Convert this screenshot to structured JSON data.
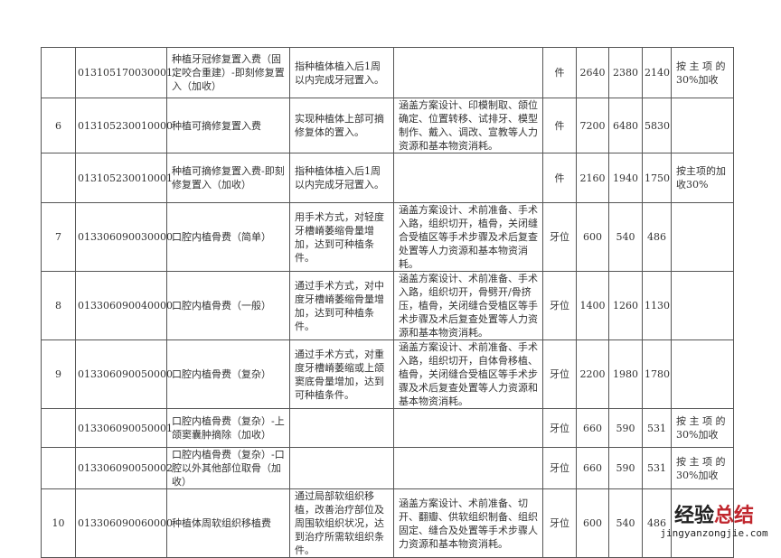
{
  "rows": [
    {
      "no": "",
      "code": "013105170030001",
      "name": "种植牙冠修复置入费（固定咬合重建）-即刻修复置入（加收）",
      "content": "指种植体植入后1周以内完成牙冠置入。",
      "desc": "",
      "unit": "件",
      "p1": "2640",
      "p2": "2380",
      "p3": "2140",
      "note": "按 主 项 的 30%加收"
    },
    {
      "no": "6",
      "code": "013105230010000",
      "name": "种植可摘修复置入费",
      "content": "实现种植体上部可摘修复体的置入。",
      "desc": "涵盖方案设计、印模制取、颌位确定、位置转移、试排牙、模型制作、戴入、调改、宣教等人力资源和基本物资消耗。",
      "unit": "件",
      "p1": "7200",
      "p2": "6480",
      "p3": "5830",
      "note": ""
    },
    {
      "no": "",
      "code": "013105230010001",
      "name": "种植可摘修复置入费-即刻修复置入（加收）",
      "content": "指种植体植入后1周以内完成牙冠置入。",
      "desc": "",
      "unit": "件",
      "p1": "2160",
      "p2": "1940",
      "p3": "1750",
      "note": "按主项的加收30%"
    },
    {
      "no": "7",
      "code": "013306090030000",
      "name": "口腔内植骨费（简单）",
      "content": "用手术方式，对轻度牙槽嵴萎缩骨量增加，达到可种植条件。",
      "desc": "涵盖方案设计、术前准备、手术入路，组织切开，植骨，关闭缝合受植区等手术步骤及术后复查处置等人力资源和基本物资消耗。",
      "unit": "牙位",
      "p1": "600",
      "p2": "540",
      "p3": "486",
      "note": ""
    },
    {
      "no": "8",
      "code": "013306090040000",
      "name": "口腔内植骨费（一般）",
      "content": "通过手术方式，对中度牙槽嵴萎缩骨量增加，达到可种植条件。",
      "desc": "涵盖方案设计、术前准备、手术入路，组织切开，骨劈开/骨挤压，植骨，关闭缝合受植区等手术步骤及术后复查处置等人力资源和基本物资消耗。",
      "unit": "牙位",
      "p1": "1400",
      "p2": "1260",
      "p3": "1130",
      "note": ""
    },
    {
      "no": "9",
      "code": "013306090050000",
      "name": "口腔内植骨费（复杂）",
      "content": "通过手术方式，对重度牙槽嵴萎缩或上颌窦底骨量增加，达到可种植条件。",
      "desc": "涵盖方案设计、术前准备、手术入路，组织切开，自体骨移植、植骨，关闭缝合受植区等手术步骤及术后复查处置等人力资源和基本物资消耗。",
      "unit": "牙位",
      "p1": "2200",
      "p2": "1980",
      "p3": "1780",
      "note": ""
    },
    {
      "no": "",
      "code": "013306090050001",
      "name": "口腔内植骨费（复杂）-上颌窦囊肿摘除（加收）",
      "content": "",
      "desc": "",
      "unit": "牙位",
      "p1": "660",
      "p2": "590",
      "p3": "531",
      "note": "按 主 项 的 30%加收"
    },
    {
      "no": "",
      "code": "013306090050002",
      "name": "口腔内植骨费（复杂）-口腔以外其他部位取骨（加收）",
      "content": "",
      "desc": "",
      "unit": "牙位",
      "p1": "660",
      "p2": "590",
      "p3": "531",
      "note": "按 主 项 的 30%加收"
    },
    {
      "no": "10",
      "code": "013306090060000",
      "name": "种植体周软组织移植费",
      "content": "通过局部软组织移植，改善治疗部位及周围软组织状况，达到治疗所需软组织条件。",
      "desc": "涵盖方案设计、术前准备、切开、翻瓣、供软组织制备、组织固定、缝合及处置等手术步骤人力资源和基本物资消耗。",
      "unit": "牙位",
      "p1": "600",
      "p2": "540",
      "p3": "486",
      "note": ""
    }
  ],
  "watermark": {
    "cn_black": "经验",
    "cn_red": "总结",
    "url": "jingyanzongjie.com",
    "red_color": "#c0262d"
  }
}
